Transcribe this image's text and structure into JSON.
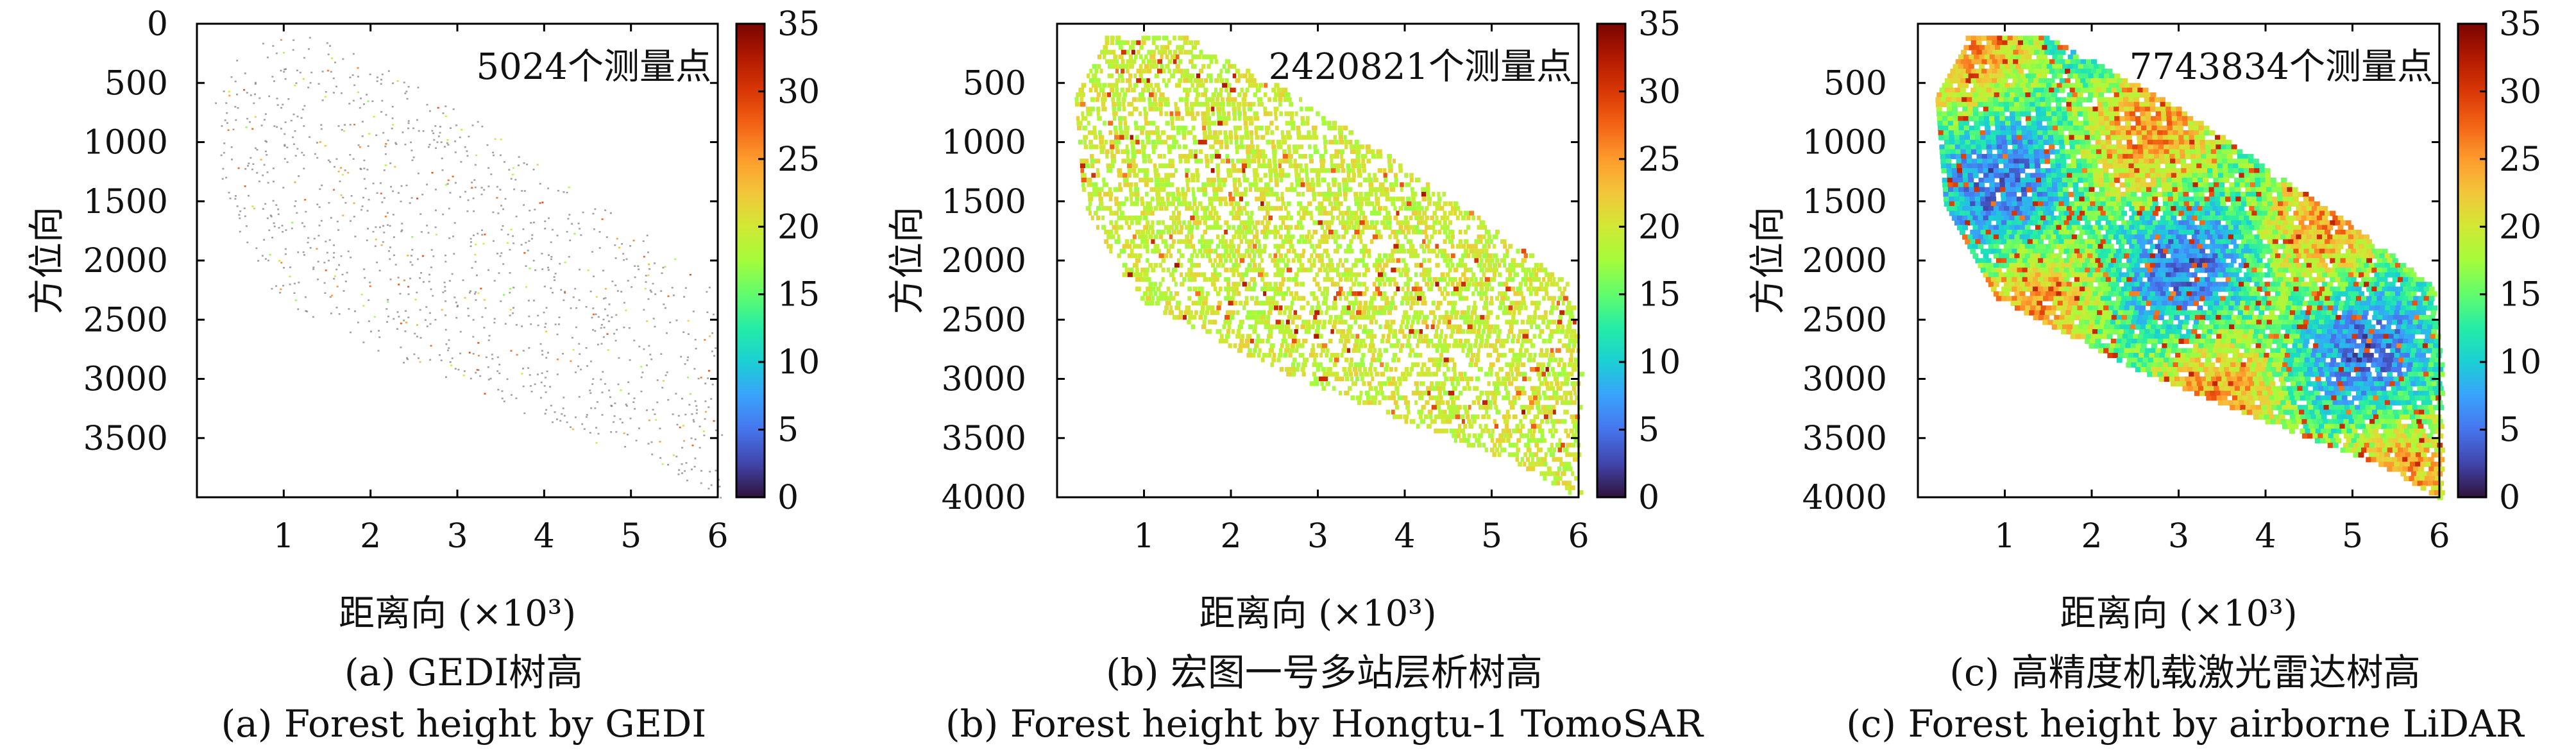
{
  "figure": {
    "colorbar_colors": [
      "#30123b",
      "#4145ab",
      "#4675ed",
      "#39a2fc",
      "#1bcfd4",
      "#24eca6",
      "#61fc6c",
      "#a4fc3b",
      "#d1e834",
      "#f3c63a",
      "#fe9b2d",
      "#f36315",
      "#d93806",
      "#b11901",
      "#7a0402"
    ]
  },
  "chart_data": [
    {
      "type": "heatmap",
      "id": "a",
      "xlabel": "距离向 (×10³)",
      "ylabel": "方位向",
      "x_ticks": [
        1,
        2,
        3,
        4,
        5,
        6
      ],
      "xlim": [
        0,
        6
      ],
      "y_ticks": [
        0,
        500,
        1000,
        1500,
        2000,
        2500,
        3000,
        3500
      ],
      "ylim": [
        0,
        4000
      ],
      "colorbar_ticks": [
        0,
        5,
        10,
        15,
        20,
        25,
        30,
        35
      ],
      "colorbar_range": [
        0,
        35
      ],
      "annotation": "5024个测量点",
      "caption_cn": "(a) GEDI树高",
      "caption_en": "(a) Forest height by GEDI",
      "coverage": "sparse"
    },
    {
      "type": "heatmap",
      "id": "b",
      "xlabel": "距离向 (×10³)",
      "ylabel": "方位向",
      "x_ticks": [
        1,
        2,
        3,
        4,
        5,
        6
      ],
      "xlim": [
        0,
        6
      ],
      "y_ticks": [
        500,
        1000,
        1500,
        2000,
        2500,
        3000,
        3500,
        4000
      ],
      "ylim": [
        0,
        4000
      ],
      "colorbar_ticks": [
        0,
        5,
        10,
        15,
        20,
        25,
        30,
        35
      ],
      "colorbar_range": [
        0,
        35
      ],
      "annotation": "2420821个测量点",
      "caption_cn": "(b) 宏图一号多站层析树高",
      "caption_en": "(b) Forest height by Hongtu-1 TomoSAR",
      "coverage": "medium"
    },
    {
      "type": "heatmap",
      "id": "c",
      "xlabel": "距离向 (×10³)",
      "ylabel": "方位向",
      "x_ticks": [
        1,
        2,
        3,
        4,
        5,
        6
      ],
      "xlim": [
        0,
        6
      ],
      "y_ticks": [
        500,
        1000,
        1500,
        2000,
        2500,
        3000,
        3500,
        4000
      ],
      "ylim": [
        0,
        4000
      ],
      "colorbar_ticks": [
        0,
        5,
        10,
        15,
        20,
        25,
        30,
        35
      ],
      "colorbar_range": [
        0,
        35
      ],
      "annotation": "7743834个测量点",
      "caption_cn": "(c) 高精度机载激光雷达树高",
      "caption_en": "(c) Forest height by airborne LiDAR",
      "coverage": "dense"
    }
  ]
}
